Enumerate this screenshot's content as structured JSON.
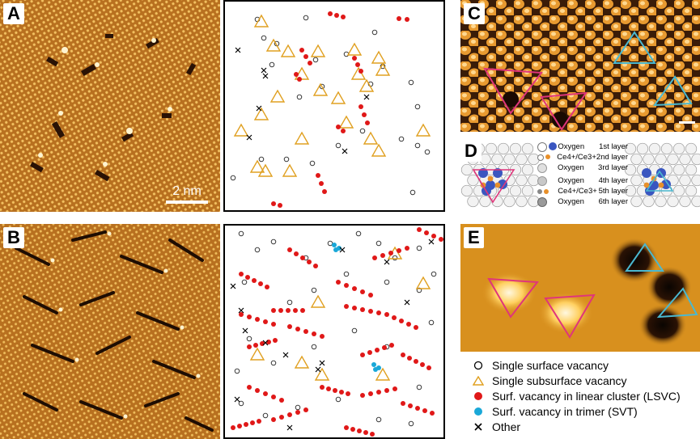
{
  "panels": {
    "A": {
      "label": "A",
      "scale_bar": "2 nm"
    },
    "B": {
      "label": "B"
    },
    "C": {
      "label": "C"
    },
    "D": {
      "label": "D"
    },
    "E": {
      "label": "E"
    }
  },
  "d_legend": [
    {
      "label": "Oxygen",
      "layer": "1st layer"
    },
    {
      "label": "Ce4+/Ce3+",
      "layer": "2nd layer"
    },
    {
      "label": "Oxygen",
      "layer": "3rd layer"
    },
    {
      "label": "Oxygen",
      "layer": "4th layer"
    },
    {
      "label": "Ce4+/Ce3+",
      "layer": "5th layer"
    },
    {
      "label": "Oxygen",
      "layer": "6th layer"
    }
  ],
  "legend": [
    {
      "symbol": "open-circle",
      "label": "Single surface vacancy"
    },
    {
      "symbol": "triangle",
      "label": "Single subsurface vacancy"
    },
    {
      "symbol": "red-dot",
      "label": "Surf. vacancy in linear cluster (LSVC)"
    },
    {
      "symbol": "cyan-dot",
      "label": "Surf. vacancy in trimer (SVT)"
    },
    {
      "symbol": "cross",
      "label": "Other"
    }
  ],
  "colors": {
    "stm_orange": "#c07a2a",
    "triangle_yellow": "#e0a020",
    "red_dot": "#e01818",
    "cyan_dot": "#1aa8d8",
    "magenta_triangle": "#e0357a",
    "cyan_triangle": "#4ab8d0"
  }
}
